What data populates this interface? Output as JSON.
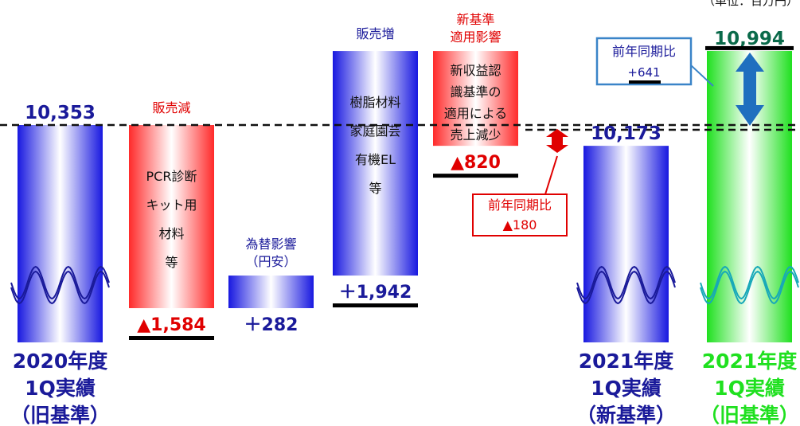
{
  "unit_label": "（単位：百万円）",
  "chart_data": {
    "type": "bar",
    "subtype": "waterfall",
    "categories": [
      "2020年度 1Q実績 （旧基準）",
      "販売減",
      "為替影響（円安）",
      "販売増",
      "新基準適用影響",
      "2021年度 1Q実績 （新基準）",
      "2021年度 1Q実績 （旧基準）"
    ],
    "values": [
      10353,
      -1584,
      282,
      1942,
      -820,
      10173,
      10994
    ],
    "colors": {
      "blue": "#1818e0",
      "red": "#ff2a2a",
      "green": "#1fe01f",
      "navy": "#1a1a9a",
      "callout_blue": "#3a84c8",
      "arrow_blue": "#1f6fbf",
      "red_text": "#e00000"
    },
    "bars": [
      {
        "id": "fy2020",
        "base": 0,
        "top": 10353,
        "color": "blue",
        "wave": true,
        "value_label": "10,353",
        "cat_lines": [
          "2020年度",
          "1Q実績",
          "（旧基準）"
        ]
      },
      {
        "id": "sales_down",
        "base": 8769,
        "top": 10353,
        "color": "red",
        "header": "販売減",
        "inner": [
          "PCR診断",
          "キット用",
          "材料",
          "等"
        ],
        "value_label": "▲1,584"
      },
      {
        "id": "fx",
        "base": 8769,
        "top": 9051,
        "color": "blue",
        "header_lines": [
          "為替影響",
          "（円安）"
        ],
        "value_label": "＋282"
      },
      {
        "id": "sales_up",
        "base": 9051,
        "top": 10993,
        "color": "blue",
        "header": "販売増",
        "inner": [
          "樹脂材料",
          "家庭園芸",
          "有機EL",
          "等"
        ],
        "value_label": "＋1,942"
      },
      {
        "id": "new_std",
        "base": 10173,
        "top": 10993,
        "color": "red",
        "header_lines": [
          "新基準",
          "適用影響"
        ],
        "inner": [
          "新収益認",
          "識基準の",
          "適用による",
          "売上減少"
        ],
        "value_label": "▲820"
      },
      {
        "id": "fy2021_new",
        "base": 0,
        "top": 10173,
        "color": "blue",
        "wave": true,
        "value_label": "10,173",
        "cat_lines": [
          "2021年度",
          "1Q実績",
          "（新基準）"
        ]
      },
      {
        "id": "fy2021_old",
        "base": 0,
        "top": 10994,
        "color": "green",
        "wave": true,
        "value_label": "10,994",
        "cat_lines": [
          "2021年度",
          "1Q実績",
          "（旧基準）"
        ]
      }
    ],
    "callouts": [
      {
        "id": "yoy_new",
        "title": "前年同期比",
        "value": "▲180"
      },
      {
        "id": "yoy_old",
        "title": "前年同期比",
        "value": "+641"
      }
    ],
    "reference_line": {
      "value": 10353,
      "style": "dashed"
    }
  }
}
